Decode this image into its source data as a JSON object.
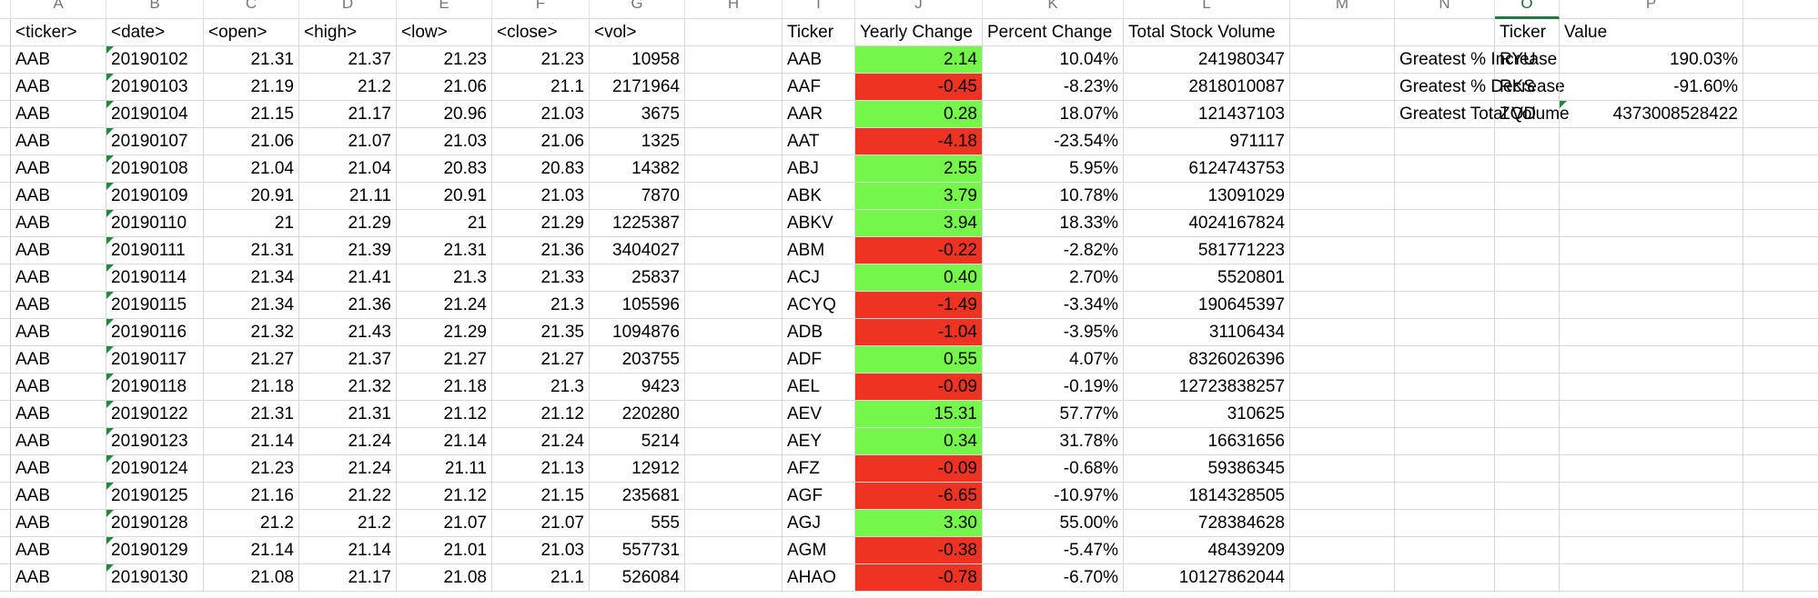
{
  "colors": {
    "positive": "#74f74a",
    "negative": "#ef3323",
    "note_marker": "#1e8a3a"
  },
  "column_headers": [
    "A",
    "B",
    "C",
    "D",
    "E",
    "F",
    "G",
    "H",
    "I",
    "J",
    "K",
    "L",
    "M",
    "N",
    "O",
    "P"
  ],
  "active_column": "O",
  "raw_header": [
    "<ticker>",
    "<date>",
    "<open>",
    "<high>",
    "<low>",
    "<close>",
    "<vol>"
  ],
  "raw_rows": [
    [
      "AAB",
      "20190102",
      "21.31",
      "21.37",
      "21.23",
      "21.23",
      "10958"
    ],
    [
      "AAB",
      "20190103",
      "21.19",
      "21.2",
      "21.06",
      "21.1",
      "2171964"
    ],
    [
      "AAB",
      "20190104",
      "21.15",
      "21.17",
      "20.96",
      "21.03",
      "3675"
    ],
    [
      "AAB",
      "20190107",
      "21.06",
      "21.07",
      "21.03",
      "21.06",
      "1325"
    ],
    [
      "AAB",
      "20190108",
      "21.04",
      "21.04",
      "20.83",
      "20.83",
      "14382"
    ],
    [
      "AAB",
      "20190109",
      "20.91",
      "21.11",
      "20.91",
      "21.03",
      "7870"
    ],
    [
      "AAB",
      "20190110",
      "21",
      "21.29",
      "21",
      "21.29",
      "1225387"
    ],
    [
      "AAB",
      "20190111",
      "21.31",
      "21.39",
      "21.31",
      "21.36",
      "3404027"
    ],
    [
      "AAB",
      "20190114",
      "21.34",
      "21.41",
      "21.3",
      "21.33",
      "25837"
    ],
    [
      "AAB",
      "20190115",
      "21.34",
      "21.36",
      "21.24",
      "21.3",
      "105596"
    ],
    [
      "AAB",
      "20190116",
      "21.32",
      "21.43",
      "21.29",
      "21.35",
      "1094876"
    ],
    [
      "AAB",
      "20190117",
      "21.27",
      "21.37",
      "21.27",
      "21.27",
      "203755"
    ],
    [
      "AAB",
      "20190118",
      "21.18",
      "21.32",
      "21.18",
      "21.3",
      "9423"
    ],
    [
      "AAB",
      "20190122",
      "21.31",
      "21.31",
      "21.12",
      "21.12",
      "220280"
    ],
    [
      "AAB",
      "20190123",
      "21.14",
      "21.24",
      "21.14",
      "21.24",
      "5214"
    ],
    [
      "AAB",
      "20190124",
      "21.23",
      "21.24",
      "21.11",
      "21.13",
      "12912"
    ],
    [
      "AAB",
      "20190125",
      "21.16",
      "21.22",
      "21.12",
      "21.15",
      "235681"
    ],
    [
      "AAB",
      "20190128",
      "21.2",
      "21.2",
      "21.07",
      "21.07",
      "555"
    ],
    [
      "AAB",
      "20190129",
      "21.14",
      "21.14",
      "21.01",
      "21.03",
      "557731"
    ],
    [
      "AAB",
      "20190130",
      "21.08",
      "21.17",
      "21.08",
      "21.1",
      "526084"
    ]
  ],
  "summary_header": [
    "Ticker",
    "Yearly Change",
    "Percent Change",
    "Total Stock Volume"
  ],
  "summary_rows": [
    {
      "ticker": "AAB",
      "change": "2.14",
      "pct": "10.04%",
      "volume": "241980347",
      "status": "positive"
    },
    {
      "ticker": "AAF",
      "change": "-0.45",
      "pct": "-8.23%",
      "volume": "2818010087",
      "status": "negative"
    },
    {
      "ticker": "AAR",
      "change": "0.28",
      "pct": "18.07%",
      "volume": "121437103",
      "status": "positive"
    },
    {
      "ticker": "AAT",
      "change": "-4.18",
      "pct": "-23.54%",
      "volume": "971117",
      "status": "negative"
    },
    {
      "ticker": "ABJ",
      "change": "2.55",
      "pct": "5.95%",
      "volume": "6124743753",
      "status": "positive"
    },
    {
      "ticker": "ABK",
      "change": "3.79",
      "pct": "10.78%",
      "volume": "13091029",
      "status": "positive"
    },
    {
      "ticker": "ABKV",
      "change": "3.94",
      "pct": "18.33%",
      "volume": "4024167824",
      "status": "positive"
    },
    {
      "ticker": "ABM",
      "change": "-0.22",
      "pct": "-2.82%",
      "volume": "581771223",
      "status": "negative"
    },
    {
      "ticker": "ACJ",
      "change": "0.40",
      "pct": "2.70%",
      "volume": "5520801",
      "status": "positive"
    },
    {
      "ticker": "ACYQ",
      "change": "-1.49",
      "pct": "-3.34%",
      "volume": "190645397",
      "status": "negative"
    },
    {
      "ticker": "ADB",
      "change": "-1.04",
      "pct": "-3.95%",
      "volume": "31106434",
      "status": "negative"
    },
    {
      "ticker": "ADF",
      "change": "0.55",
      "pct": "4.07%",
      "volume": "8326026396",
      "status": "positive"
    },
    {
      "ticker": "AEL",
      "change": "-0.09",
      "pct": "-0.19%",
      "volume": "12723838257",
      "status": "negative"
    },
    {
      "ticker": "AEV",
      "change": "15.31",
      "pct": "57.77%",
      "volume": "310625",
      "status": "positive"
    },
    {
      "ticker": "AEY",
      "change": "0.34",
      "pct": "31.78%",
      "volume": "16631656",
      "status": "positive"
    },
    {
      "ticker": "AFZ",
      "change": "-0.09",
      "pct": "-0.68%",
      "volume": "59386345",
      "status": "negative"
    },
    {
      "ticker": "AGF",
      "change": "-6.65",
      "pct": "-10.97%",
      "volume": "1814328505",
      "status": "negative"
    },
    {
      "ticker": "AGJ",
      "change": "3.30",
      "pct": "55.00%",
      "volume": "728384628",
      "status": "positive"
    },
    {
      "ticker": "AGM",
      "change": "-0.38",
      "pct": "-5.47%",
      "volume": "48439209",
      "status": "negative"
    },
    {
      "ticker": "AHAO",
      "change": "-0.78",
      "pct": "-6.70%",
      "volume": "10127862044",
      "status": "negative"
    }
  ],
  "greatest_header": [
    "Ticker",
    "Value"
  ],
  "greatest_rows": [
    {
      "label": "Greatest % Increase",
      "ticker": "RYU",
      "value": "190.03%"
    },
    {
      "label": "Greatest % Decrease",
      "ticker": "RKS",
      "value": "-91.60%"
    },
    {
      "label": "Greatest Total Volume",
      "ticker": "ZQD",
      "value": "4373008528422"
    }
  ]
}
